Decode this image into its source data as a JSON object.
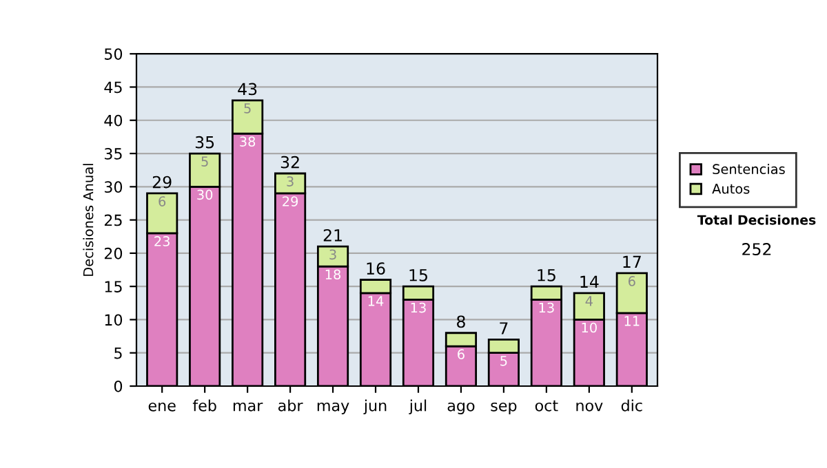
{
  "chart_data": {
    "type": "bar",
    "stacked": true,
    "ylabel": "Decisiones Anual",
    "categories": [
      "ene",
      "feb",
      "mar",
      "abr",
      "may",
      "jun",
      "jul",
      "ago",
      "sep",
      "oct",
      "nov",
      "dic"
    ],
    "series": [
      {
        "name": "Sentencias",
        "color": "#df80c0",
        "values": [
          23,
          30,
          38,
          29,
          18,
          14,
          13,
          6,
          5,
          13,
          10,
          11
        ],
        "value_labels": [
          "23",
          "30",
          "38",
          "29",
          "18",
          "14",
          "13",
          "6",
          "5",
          "13",
          "10",
          "11"
        ]
      },
      {
        "name": "Autos",
        "color": "#d4ec9c",
        "values": [
          6,
          5,
          5,
          3,
          3,
          2,
          2,
          2,
          2,
          2,
          4,
          6
        ],
        "value_labels": [
          "6",
          "5",
          "5",
          "3",
          "3",
          null,
          null,
          null,
          null,
          null,
          "4",
          "6"
        ]
      }
    ],
    "totals": [
      "29",
      "35",
      "43",
      "32",
      "21",
      "16",
      "15",
      "8",
      "7",
      "15",
      "14",
      "17"
    ],
    "ylim": [
      0,
      50
    ],
    "yticks": [
      0,
      5,
      10,
      15,
      20,
      25,
      30,
      35,
      40,
      45,
      50
    ],
    "grid": "y",
    "legend": "right",
    "annotations": [
      "Total Decisiones",
      "252"
    ]
  }
}
